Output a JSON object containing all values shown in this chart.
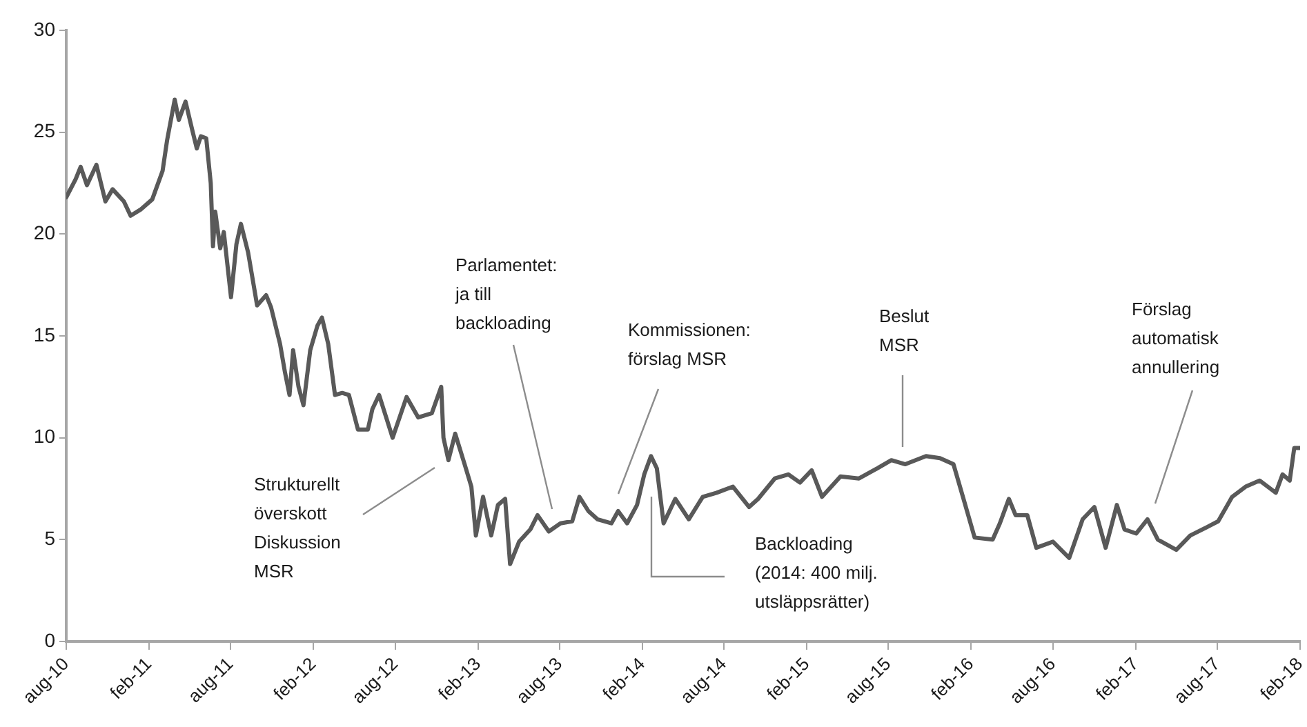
{
  "chart_data": {
    "type": "line",
    "x": [
      "2010-08-01",
      "2010-08-22",
      "2010-09-02",
      "2010-09-16",
      "2010-10-07",
      "2010-10-27",
      "2010-11-12",
      "2010-12-07",
      "2010-12-22",
      "2011-01-13",
      "2011-02-08",
      "2011-03-03",
      "2011-03-13",
      "2011-03-30",
      "2011-04-08",
      "2011-04-23",
      "2011-05-08",
      "2011-05-18",
      "2011-05-27",
      "2011-06-08",
      "2011-06-18",
      "2011-06-23",
      "2011-06-28",
      "2011-07-09",
      "2011-07-17",
      "2011-08-02",
      "2011-08-14",
      "2011-08-24",
      "2011-09-09",
      "2011-09-29",
      "2011-10-19",
      "2011-10-30",
      "2011-11-19",
      "2011-11-30",
      "2011-12-10",
      "2011-12-18",
      "2011-12-30",
      "2012-01-10",
      "2012-01-25",
      "2012-02-10",
      "2012-02-20",
      "2012-03-05",
      "2012-03-20",
      "2012-04-05",
      "2012-04-20",
      "2012-05-10",
      "2012-06-01",
      "2012-06-11",
      "2012-06-26",
      "2012-07-26",
      "2012-08-26",
      "2012-09-21",
      "2012-10-21",
      "2012-11-11",
      "2012-11-16",
      "2012-11-27",
      "2012-12-12",
      "2013-01-02",
      "2013-01-17",
      "2013-01-27",
      "2013-02-12",
      "2013-03-02",
      "2013-03-17",
      "2013-04-02",
      "2013-04-13",
      "2013-05-03",
      "2013-05-28",
      "2013-06-13",
      "2013-07-08",
      "2013-08-03",
      "2013-08-29",
      "2013-09-14",
      "2013-10-04",
      "2013-10-24",
      "2013-11-24",
      "2013-12-09",
      "2013-12-29",
      "2014-01-20",
      "2014-02-05",
      "2014-02-20",
      "2014-03-05",
      "2014-03-20",
      "2014-04-15",
      "2014-05-15",
      "2014-06-15",
      "2014-07-16",
      "2014-08-21",
      "2014-09-26",
      "2014-10-16",
      "2014-11-22",
      "2014-12-22",
      "2015-01-17",
      "2015-02-12",
      "2015-03-07",
      "2015-04-17",
      "2015-05-28",
      "2015-07-08",
      "2015-08-08",
      "2015-09-08",
      "2015-10-24",
      "2015-11-24",
      "2015-12-24",
      "2016-01-14",
      "2016-02-09",
      "2016-03-20",
      "2016-04-05",
      "2016-04-25",
      "2016-05-10",
      "2016-06-05",
      "2016-06-25",
      "2016-08-01",
      "2016-09-06",
      "2016-10-06",
      "2016-11-01",
      "2016-11-26",
      "2016-12-21",
      "2017-01-07",
      "2017-02-02",
      "2017-02-27",
      "2017-03-22",
      "2017-05-02",
      "2017-06-02",
      "2017-07-08",
      "2017-08-03",
      "2017-09-03",
      "2017-10-03",
      "2017-11-03",
      "2017-12-09",
      "2017-12-24",
      "2018-01-09",
      "2018-01-19",
      "2018-02-01"
    ],
    "series": [
      {
        "color": "#595959",
        "values": [
          21.8,
          22.7,
          23.3,
          22.4,
          23.4,
          21.6,
          22.2,
          21.6,
          20.9,
          21.2,
          21.7,
          23.1,
          24.6,
          26.6,
          25.6,
          26.5,
          25.1,
          24.2,
          24.8,
          24.7,
          22.5,
          19.4,
          21.1,
          19.3,
          20.1,
          16.9,
          19.5,
          20.5,
          19.1,
          16.5,
          17.0,
          16.4,
          14.6,
          13.2,
          12.1,
          14.3,
          12.5,
          11.6,
          14.3,
          15.5,
          15.9,
          14.6,
          12.1,
          12.2,
          12.1,
          10.4,
          10.4,
          11.4,
          12.1,
          10.0,
          12.0,
          11.0,
          11.2,
          12.5,
          10.0,
          8.9,
          10.2,
          8.7,
          7.6,
          5.2,
          7.1,
          5.2,
          6.7,
          7.0,
          3.8,
          4.9,
          5.5,
          6.2,
          5.4,
          5.8,
          5.9,
          7.1,
          6.4,
          6.0,
          5.8,
          6.4,
          5.8,
          6.7,
          8.2,
          9.1,
          8.5,
          5.8,
          7.0,
          6.0,
          7.1,
          7.3,
          7.6,
          6.6,
          7.0,
          8.0,
          8.2,
          7.8,
          8.4,
          7.1,
          8.1,
          8.0,
          8.5,
          8.9,
          8.7,
          9.1,
          9.0,
          8.7,
          7.1,
          5.1,
          5.0,
          5.8,
          7.0,
          6.2,
          6.2,
          4.6,
          4.9,
          4.1,
          6.0,
          6.6,
          4.6,
          6.7,
          5.5,
          5.3,
          6.0,
          5.0,
          4.5,
          5.2,
          5.6,
          5.9,
          7.1,
          7.6,
          7.9,
          7.3,
          8.2,
          7.9,
          9.5,
          9.5
        ]
      }
    ],
    "xlim": [
      "2010-08-01",
      "2018-02-01"
    ],
    "xticks": [
      {
        "value": "2010-08",
        "label": "aug-10"
      },
      {
        "value": "2011-02",
        "label": "feb-11"
      },
      {
        "value": "2011-08",
        "label": "aug-11"
      },
      {
        "value": "2012-02",
        "label": "feb-12"
      },
      {
        "value": "2012-08",
        "label": "aug-12"
      },
      {
        "value": "2013-02",
        "label": "feb-13"
      },
      {
        "value": "2013-08",
        "label": "aug-13"
      },
      {
        "value": "2014-02",
        "label": "feb-14"
      },
      {
        "value": "2014-08",
        "label": "aug-14"
      },
      {
        "value": "2015-02",
        "label": "feb-15"
      },
      {
        "value": "2015-08",
        "label": "aug-15"
      },
      {
        "value": "2016-02",
        "label": "feb-16"
      },
      {
        "value": "2016-08",
        "label": "aug-16"
      },
      {
        "value": "2017-02",
        "label": "feb-17"
      },
      {
        "value": "2017-08",
        "label": "aug-17"
      },
      {
        "value": "2018-02",
        "label": "feb-18"
      }
    ],
    "ylim": [
      0,
      30
    ],
    "yticks": [
      0,
      5,
      10,
      15,
      20,
      25,
      30
    ],
    "grid": false,
    "legend": false,
    "marker": "none",
    "line_style": "solid",
    "annotations": [
      "Strukturellt\növerskott\nDiskussion\nMSR",
      "Parlamentet:\nja till\nbackloading",
      "Kommissionen:\nförslag MSR",
      "Beslut\nMSR",
      "Förslag\nautomatisk\nannullering",
      "Backloading\n(2014: 400 milj.\nutsläppsrätter)"
    ]
  }
}
